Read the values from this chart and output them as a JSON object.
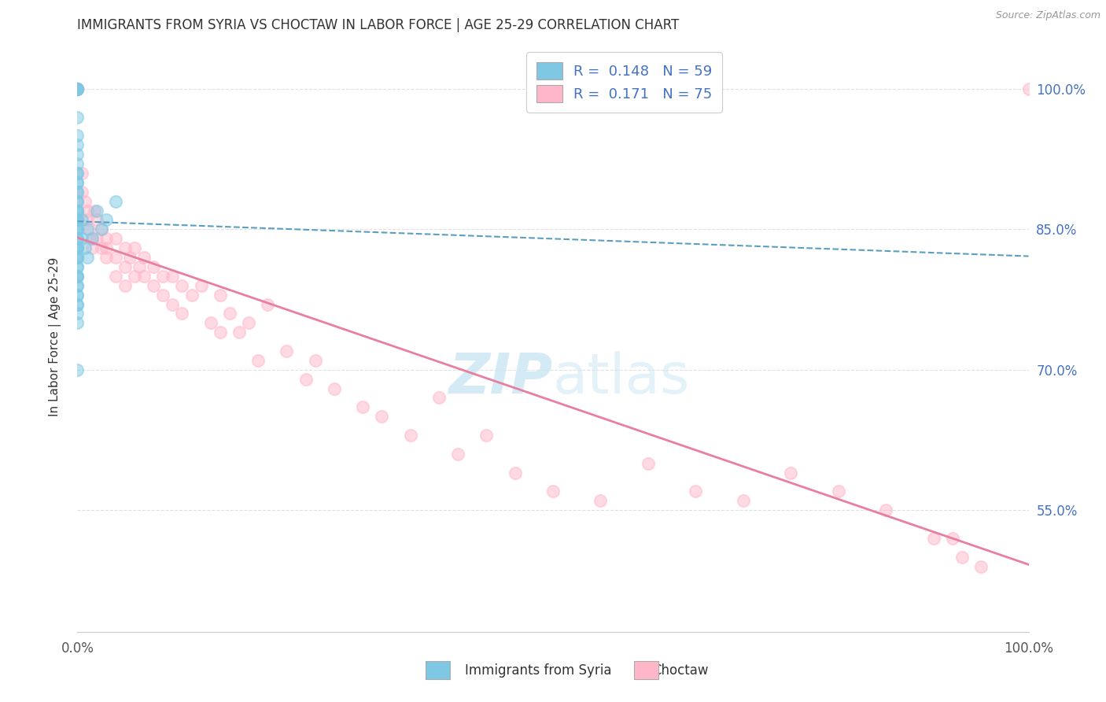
{
  "title": "IMMIGRANTS FROM SYRIA VS CHOCTAW IN LABOR FORCE | AGE 25-29 CORRELATION CHART",
  "source": "Source: ZipAtlas.com",
  "ylabel": "In Labor Force | Age 25-29",
  "watermark": "ZIPatlas",
  "legend_r_syria": "0.148",
  "legend_n_syria": "59",
  "legend_r_choctaw": "0.171",
  "legend_n_choctaw": "75",
  "xlim": [
    0.0,
    1.0
  ],
  "ylim": [
    0.42,
    1.05
  ],
  "yticks": [
    0.55,
    0.7,
    0.85,
    1.0
  ],
  "ytick_labels": [
    "55.0%",
    "70.0%",
    "85.0%",
    "100.0%"
  ],
  "color_syria": "#7ec8e3",
  "color_choctaw": "#ffb6c8",
  "trendline_syria_color": "#5a9fc0",
  "trendline_choctaw_color": "#e87fa0",
  "background_color": "#ffffff",
  "grid_color": "#e0e0e0",
  "syria_x": [
    0.0,
    0.0,
    0.0,
    0.0,
    0.0,
    0.0,
    0.0,
    0.0,
    0.0,
    0.0,
    0.0,
    0.0,
    0.0,
    0.0,
    0.0,
    0.0,
    0.0,
    0.0,
    0.0,
    0.0,
    0.0,
    0.0,
    0.0,
    0.0,
    0.0,
    0.0,
    0.0,
    0.0,
    0.0,
    0.0,
    0.0,
    0.0,
    0.0,
    0.0,
    0.0,
    0.0,
    0.0,
    0.0,
    0.0,
    0.0,
    0.0,
    0.0,
    0.0,
    0.0,
    0.0,
    0.0,
    0.0,
    0.0,
    0.0,
    0.005,
    0.005,
    0.008,
    0.01,
    0.01,
    0.015,
    0.02,
    0.025,
    0.03,
    0.04
  ],
  "syria_y": [
    1.0,
    1.0,
    1.0,
    1.0,
    1.0,
    0.97,
    0.95,
    0.94,
    0.93,
    0.92,
    0.91,
    0.91,
    0.9,
    0.9,
    0.89,
    0.89,
    0.88,
    0.88,
    0.87,
    0.87,
    0.87,
    0.86,
    0.86,
    0.86,
    0.85,
    0.85,
    0.85,
    0.84,
    0.84,
    0.83,
    0.83,
    0.83,
    0.82,
    0.82,
    0.82,
    0.81,
    0.81,
    0.8,
    0.8,
    0.8,
    0.79,
    0.79,
    0.78,
    0.78,
    0.77,
    0.77,
    0.76,
    0.75,
    0.7,
    0.86,
    0.84,
    0.83,
    0.85,
    0.82,
    0.84,
    0.87,
    0.85,
    0.86,
    0.88
  ],
  "choctaw_x": [
    0.0,
    0.0,
    0.0,
    0.0,
    0.0,
    0.005,
    0.005,
    0.008,
    0.01,
    0.01,
    0.012,
    0.015,
    0.015,
    0.018,
    0.02,
    0.02,
    0.025,
    0.025,
    0.03,
    0.03,
    0.03,
    0.04,
    0.04,
    0.04,
    0.05,
    0.05,
    0.05,
    0.055,
    0.06,
    0.06,
    0.065,
    0.07,
    0.07,
    0.08,
    0.08,
    0.09,
    0.09,
    0.1,
    0.1,
    0.11,
    0.11,
    0.12,
    0.13,
    0.14,
    0.15,
    0.15,
    0.16,
    0.17,
    0.18,
    0.19,
    0.2,
    0.22,
    0.24,
    0.25,
    0.27,
    0.3,
    0.32,
    0.35,
    0.38,
    0.4,
    0.43,
    0.46,
    0.5,
    0.55,
    0.6,
    0.65,
    0.7,
    0.75,
    0.8,
    0.85,
    0.9,
    0.92,
    0.93,
    0.95,
    1.0
  ],
  "choctaw_y": [
    1.0,
    1.0,
    1.0,
    1.0,
    1.0,
    0.91,
    0.89,
    0.88,
    0.87,
    0.86,
    0.85,
    0.84,
    0.83,
    0.87,
    0.86,
    0.84,
    0.85,
    0.83,
    0.84,
    0.83,
    0.82,
    0.84,
    0.82,
    0.8,
    0.83,
    0.81,
    0.79,
    0.82,
    0.83,
    0.8,
    0.81,
    0.82,
    0.8,
    0.81,
    0.79,
    0.8,
    0.78,
    0.8,
    0.77,
    0.79,
    0.76,
    0.78,
    0.79,
    0.75,
    0.78,
    0.74,
    0.76,
    0.74,
    0.75,
    0.71,
    0.77,
    0.72,
    0.69,
    0.71,
    0.68,
    0.66,
    0.65,
    0.63,
    0.67,
    0.61,
    0.63,
    0.59,
    0.57,
    0.56,
    0.6,
    0.57,
    0.56,
    0.59,
    0.57,
    0.55,
    0.52,
    0.52,
    0.5,
    0.49,
    1.0
  ]
}
